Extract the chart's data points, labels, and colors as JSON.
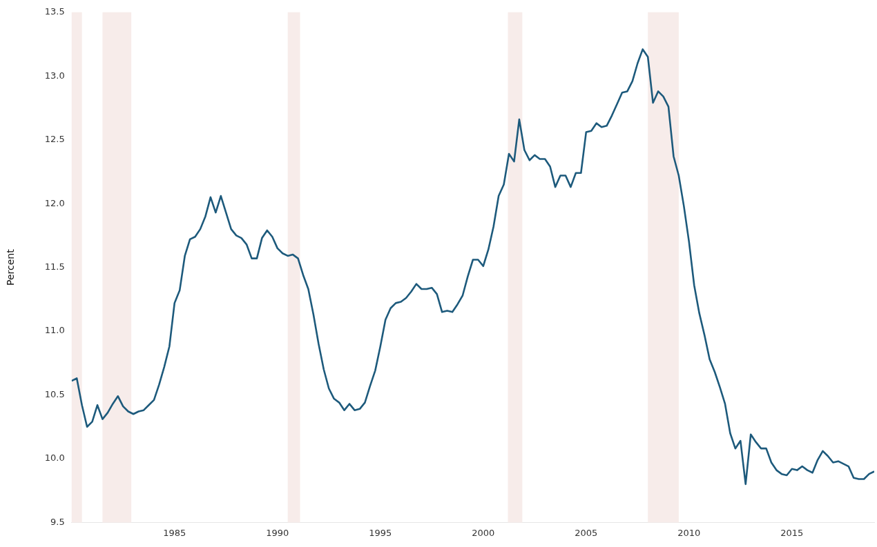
{
  "chart_data": {
    "type": "line",
    "ylabel": "Percent",
    "x": [
      1980,
      1980.25,
      1980.5,
      1980.75,
      1981,
      1981.25,
      1981.5,
      1981.75,
      1982,
      1982.25,
      1982.5,
      1982.75,
      1983,
      1983.25,
      1983.5,
      1983.75,
      1984,
      1984.25,
      1984.5,
      1984.75,
      1985,
      1985.25,
      1985.5,
      1985.75,
      1986,
      1986.25,
      1986.5,
      1986.75,
      1987,
      1987.25,
      1987.5,
      1987.75,
      1988,
      1988.25,
      1988.5,
      1988.75,
      1989,
      1989.25,
      1989.5,
      1989.75,
      1990,
      1990.25,
      1990.5,
      1990.75,
      1991,
      1991.25,
      1991.5,
      1991.75,
      1992,
      1992.25,
      1992.5,
      1992.75,
      1993,
      1993.25,
      1993.5,
      1993.75,
      1994,
      1994.25,
      1994.5,
      1994.75,
      1995,
      1995.25,
      1995.5,
      1995.75,
      1996,
      1996.25,
      1996.5,
      1996.75,
      1997,
      1997.25,
      1997.5,
      1997.75,
      1998,
      1998.25,
      1998.5,
      1998.75,
      1999,
      1999.25,
      1999.5,
      1999.75,
      2000,
      2000.25,
      2000.5,
      2000.75,
      2001,
      2001.25,
      2001.5,
      2001.75,
      2002,
      2002.25,
      2002.5,
      2002.75,
      2003,
      2003.25,
      2003.5,
      2003.75,
      2004,
      2004.25,
      2004.5,
      2004.75,
      2005,
      2005.25,
      2005.5,
      2005.75,
      2006,
      2006.25,
      2006.5,
      2006.75,
      2007,
      2007.25,
      2007.5,
      2007.75,
      2008,
      2008.25,
      2008.5,
      2008.75,
      2009,
      2009.25,
      2009.5,
      2009.75,
      2010,
      2010.25,
      2010.5,
      2010.75,
      2011,
      2011.25,
      2011.5,
      2011.75,
      2012,
      2012.25,
      2012.5,
      2012.75,
      2013,
      2013.25,
      2013.5,
      2013.75,
      2014,
      2014.25,
      2014.5,
      2014.75,
      2015,
      2015.25,
      2015.5,
      2015.75,
      2016,
      2016.25,
      2016.5,
      2016.75,
      2017,
      2017.25,
      2017.5,
      2017.75,
      2018,
      2018.25,
      2018.5,
      2018.75,
      2019
    ],
    "series": [
      {
        "color": "#1d5a7c",
        "values": [
          10.61,
          10.63,
          10.42,
          10.25,
          10.29,
          10.42,
          10.31,
          10.36,
          10.43,
          10.49,
          10.41,
          10.37,
          10.35,
          10.37,
          10.38,
          10.42,
          10.46,
          10.58,
          10.72,
          10.88,
          11.22,
          11.32,
          11.59,
          11.72,
          11.74,
          11.8,
          11.9,
          12.05,
          11.93,
          12.06,
          11.93,
          11.8,
          11.75,
          11.73,
          11.68,
          11.57,
          11.57,
          11.73,
          11.79,
          11.74,
          11.65,
          11.61,
          11.59,
          11.6,
          11.57,
          11.44,
          11.33,
          11.13,
          10.9,
          10.7,
          10.55,
          10.47,
          10.44,
          10.38,
          10.43,
          10.38,
          10.39,
          10.44,
          10.57,
          10.69,
          10.88,
          11.09,
          11.18,
          11.22,
          11.23,
          11.26,
          11.31,
          11.37,
          11.33,
          11.33,
          11.34,
          11.29,
          11.15,
          11.16,
          11.15,
          11.21,
          11.28,
          11.43,
          11.56,
          11.56,
          11.51,
          11.64,
          11.82,
          12.06,
          12.15,
          12.39,
          12.33,
          12.66,
          12.42,
          12.34,
          12.38,
          12.35,
          12.35,
          12.29,
          12.13,
          12.22,
          12.22,
          12.13,
          12.24,
          12.24,
          12.56,
          12.57,
          12.63,
          12.6,
          12.61,
          12.69,
          12.78,
          12.87,
          12.88,
          12.96,
          13.1,
          13.21,
          13.15,
          12.79,
          12.88,
          12.84,
          12.76,
          12.37,
          12.22,
          11.98,
          11.7,
          11.36,
          11.14,
          10.97,
          10.78,
          10.68,
          10.56,
          10.43,
          10.2,
          10.08,
          10.14,
          9.8,
          10.19,
          10.13,
          10.08,
          10.08,
          9.97,
          9.91,
          9.88,
          9.87,
          9.92,
          9.91,
          9.94,
          9.91,
          9.89,
          9.99,
          10.06,
          10.02,
          9.97,
          9.98,
          9.96,
          9.94,
          9.85,
          9.84,
          9.84,
          9.88,
          9.9
        ]
      }
    ],
    "xlim": [
      1980,
      2019
    ],
    "xticks": [
      1985,
      1990,
      1995,
      2000,
      2005,
      2010,
      2015
    ],
    "ylim": [
      9.5,
      13.5
    ],
    "yticks": [
      9.5,
      {
        "value": 10,
        "label": "10.0"
      },
      10.5,
      {
        "value": 11,
        "label": "11.0"
      },
      11.5,
      {
        "value": 12,
        "label": "12.0"
      },
      12.5,
      {
        "value": 13,
        "label": "13.0"
      },
      13.5
    ],
    "bands": [
      {
        "axis": "x",
        "from": 1980,
        "to": 1980.5,
        "color": "#f7ecea"
      },
      {
        "axis": "x",
        "from": 1981.5,
        "to": 1982.9,
        "color": "#f7ecea"
      },
      {
        "axis": "x",
        "from": 1990.5,
        "to": 1991.1,
        "color": "#f7ecea"
      },
      {
        "axis": "x",
        "from": 2001.2,
        "to": 2001.9,
        "color": "#f7ecea"
      },
      {
        "axis": "x",
        "from": 2008,
        "to": 2009.5,
        "color": "#f7ecea"
      }
    ],
    "grid": false,
    "legend": false,
    "marker": "none",
    "line_style": "solid"
  }
}
